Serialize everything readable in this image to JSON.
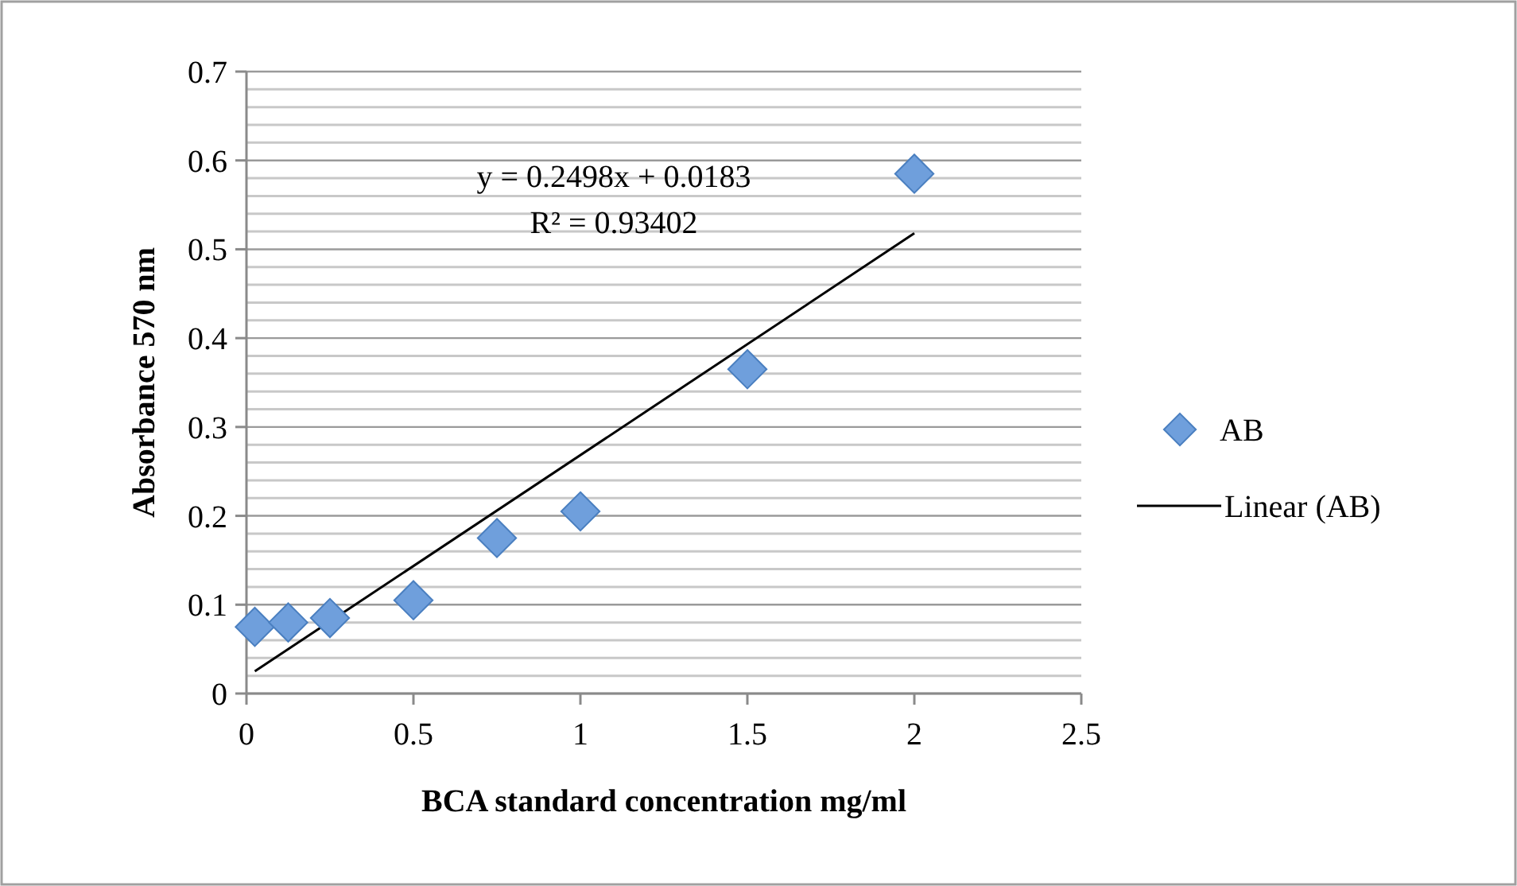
{
  "chart_data": {
    "type": "scatter",
    "xlabel": "BCA standard concentration mg/ml",
    "ylabel": "Absorbance 570 nm",
    "xlim": [
      0,
      2.5
    ],
    "xticks": [
      0,
      0.5,
      1,
      1.5,
      2,
      2.5
    ],
    "ylim": [
      0,
      0.7
    ],
    "yticks": [
      0,
      {
        "value": 0.02,
        "label": null
      },
      {
        "value": 0.04,
        "label": null
      },
      {
        "value": 0.06,
        "label": null
      },
      {
        "value": 0.08,
        "label": null
      },
      0.1,
      {
        "value": 0.12,
        "label": null
      },
      {
        "value": 0.14,
        "label": null
      },
      {
        "value": 0.16,
        "label": null
      },
      {
        "value": 0.18,
        "label": null
      },
      0.2,
      {
        "value": 0.22,
        "label": null
      },
      {
        "value": 0.24,
        "label": null
      },
      {
        "value": 0.26,
        "label": null
      },
      {
        "value": 0.28,
        "label": null
      },
      0.3,
      {
        "value": 0.32,
        "label": null
      },
      {
        "value": 0.34,
        "label": null
      },
      {
        "value": 0.36,
        "label": null
      },
      {
        "value": 0.38,
        "label": null
      },
      0.4,
      {
        "value": 0.42,
        "label": null
      },
      {
        "value": 0.44,
        "label": null
      },
      {
        "value": 0.46,
        "label": null
      },
      {
        "value": 0.48,
        "label": null
      },
      0.5,
      {
        "value": 0.52,
        "label": null
      },
      {
        "value": 0.54,
        "label": null
      },
      {
        "value": 0.56,
        "label": null
      },
      {
        "value": 0.58,
        "label": null
      },
      0.6,
      {
        "value": 0.62,
        "label": null
      },
      {
        "value": 0.64,
        "label": null
      },
      {
        "value": 0.66,
        "label": null
      },
      {
        "value": 0.68,
        "label": null
      },
      0.7
    ],
    "grid": "y",
    "legend": "right",
    "series": [
      {
        "name": "AB",
        "marker": "diamond",
        "color": "#6f9fdc",
        "x": [
          0.025,
          0.125,
          0.25,
          0.5,
          0.75,
          1,
          1.5,
          2
        ],
        "values": [
          0.075,
          0.08,
          0.085,
          0.105,
          0.175,
          0.205,
          0.365,
          0.585
        ]
      },
      {
        "name": "Linear (AB)",
        "type": "line",
        "color": "#000000",
        "line_style": "solid",
        "marker": "none",
        "x": [
          0.025,
          2
        ],
        "values": [
          0.025,
          0.518
        ]
      }
    ],
    "annotations": [
      "y = 0.2498x + 0.0183",
      "R² = 0.93402"
    ]
  }
}
